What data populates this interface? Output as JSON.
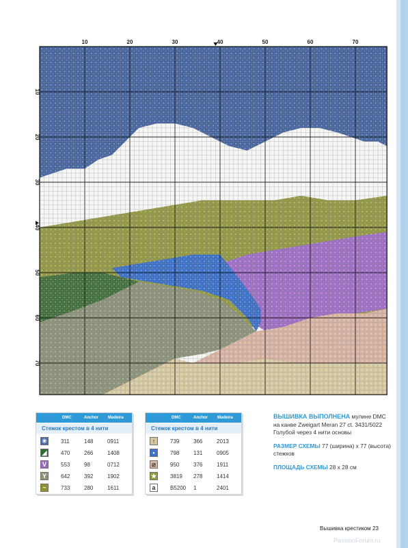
{
  "chart": {
    "col_labels": [
      "10",
      "20",
      "30",
      "40",
      "50",
      "60",
      "70"
    ],
    "row_labels": [
      "10",
      "20",
      "30",
      "40",
      "50",
      "60",
      "70"
    ]
  },
  "legend_left": {
    "headers": [
      "DMC",
      "Anchor",
      "Madeira"
    ],
    "title": "Стежок крестом в 4 нити",
    "rows": [
      {
        "symbol": "✳",
        "color": "#4a6aa8",
        "dmc": "311",
        "anchor": "148",
        "madeira": "0911"
      },
      {
        "symbol": "◢",
        "color": "#2e6a32",
        "dmc": "470",
        "anchor": "266",
        "madeira": "1408"
      },
      {
        "symbol": "V",
        "color": "#9a6cc0",
        "dmc": "553",
        "anchor": "98",
        "madeira": "0712"
      },
      {
        "symbol": "Y",
        "color": "#8a9374",
        "dmc": "642",
        "anchor": "392",
        "madeira": "1902"
      },
      {
        "symbol": "~",
        "color": "#8f9030",
        "dmc": "733",
        "anchor": "280",
        "madeira": "1611"
      }
    ]
  },
  "legend_right": {
    "headers": [
      "DMC",
      "Anchor",
      "Madeira"
    ],
    "title": "Стежок крестом в 4 нити",
    "rows": [
      {
        "symbol": "↑",
        "color": "#d6c7a0",
        "dmc": "739",
        "anchor": "366",
        "madeira": "2013"
      },
      {
        "symbol": "•",
        "color": "#3e74c8",
        "dmc": "798",
        "anchor": "131",
        "madeira": "0905"
      },
      {
        "symbol": "⧄",
        "color": "#d9b4a4",
        "dmc": "950",
        "anchor": "376",
        "madeira": "1911"
      },
      {
        "symbol": "★",
        "color": "#8f9a3e",
        "dmc": "3819",
        "anchor": "278",
        "madeira": "1414"
      },
      {
        "symbol": "a",
        "color": "#ffffff",
        "dmc": "B5200",
        "anchor": "1",
        "madeira": "2401"
      }
    ]
  },
  "info": {
    "heading1": "ВЫШИВКА ВЫПОЛНЕНА",
    "text1": " мулине DMC на канве  Zweigart Meran 27 ct. 3431/5022 Голубой через 4 нити основы",
    "heading2": "РАЗМЕР СХЕМЫ",
    "text2": " 77 (ширина) х 77 (высота) стежков",
    "heading3": "ПЛОЩАДЬ СХЕМЫ",
    "text3": " 28 х 28 см"
  },
  "footer": {
    "title": "Вышивка крестиком",
    "page": "23"
  },
  "watermark": "PassionForum.ru",
  "colors": {
    "sky": "#45649e",
    "white": "#f5f5f3",
    "olive": "#929844",
    "dark_green": "#3f6e3a",
    "purple": "#9e6ec4",
    "blue": "#3a6fc8",
    "grey_green": "#8c917a",
    "pink": "#d9b3a2",
    "beige": "#d6c8a0"
  }
}
